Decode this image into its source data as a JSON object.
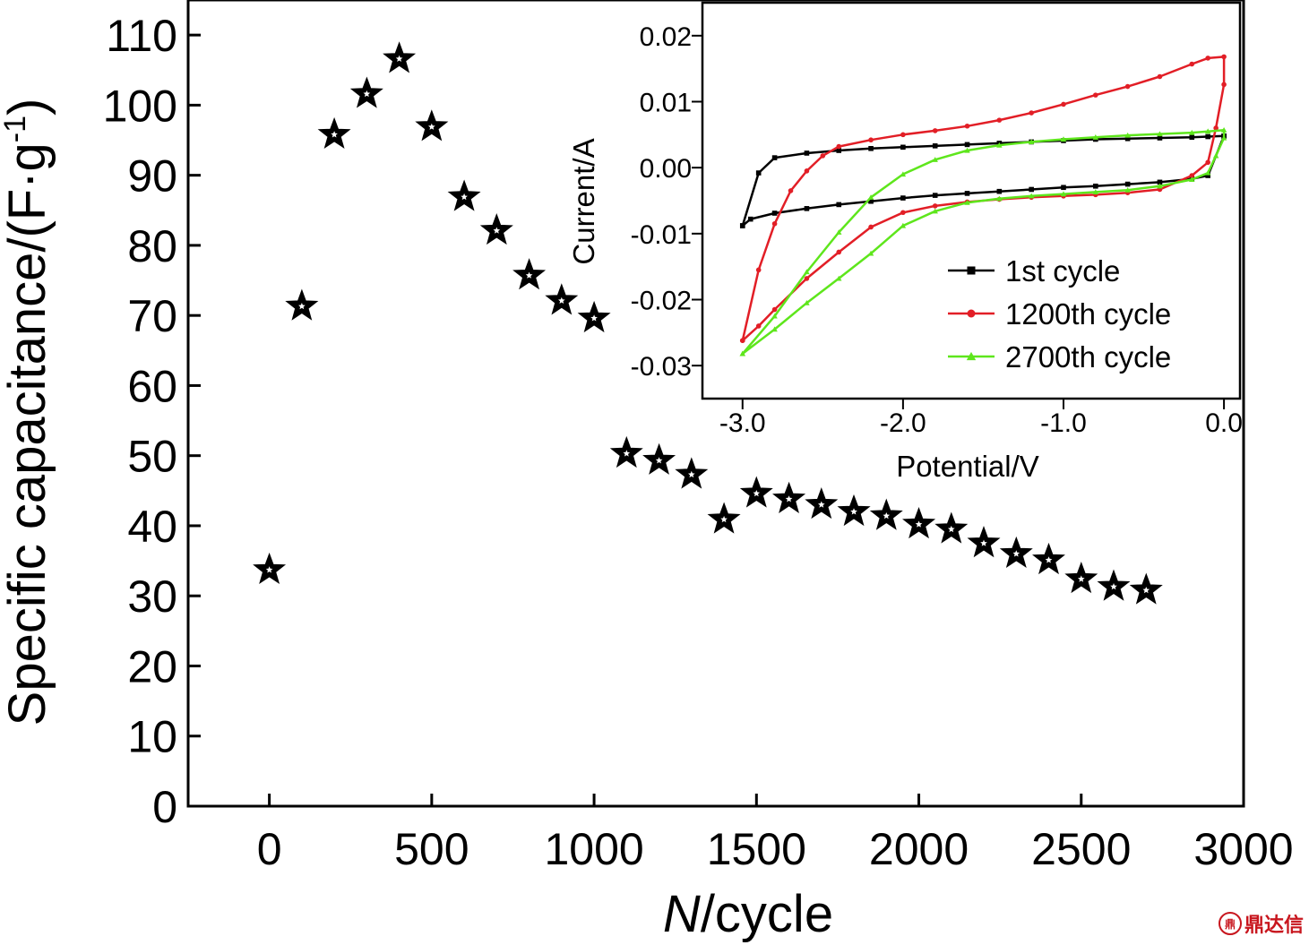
{
  "chart_data": [
    {
      "type": "scatter",
      "marker": "star",
      "xlabel_italic": "N",
      "xlabel_rest": "/cycle",
      "ylabel": "Specific capacitance/(F·g",
      "ylabel_sup": "-1",
      "ylabel_close": ")",
      "xlim": [
        -250,
        3000
      ],
      "ylim": [
        0,
        115
      ],
      "xticks": [
        0,
        500,
        1000,
        1500,
        2000,
        2500,
        3000
      ],
      "yticks": [
        0,
        10,
        20,
        30,
        40,
        50,
        60,
        70,
        80,
        90,
        100,
        110
      ],
      "x": [
        0,
        100,
        200,
        300,
        400,
        500,
        600,
        700,
        800,
        900,
        1000,
        1100,
        1200,
        1300,
        1400,
        1500,
        1600,
        1700,
        1800,
        1900,
        2000,
        2100,
        2200,
        2300,
        2400,
        2500,
        2600,
        2700
      ],
      "y": [
        33.7,
        71.3,
        95.8,
        101.6,
        106.6,
        96.9,
        86.9,
        82.1,
        75.7,
        72.1,
        69.6,
        50.3,
        49.3,
        47.3,
        40.9,
        44.6,
        43.8,
        43.0,
        42.0,
        41.4,
        40.2,
        39.5,
        37.5,
        36.0,
        35.1,
        32.4,
        31.3,
        30.8
      ]
    },
    {
      "type": "line",
      "role": "inset",
      "xlabel": "Potential/V",
      "ylabel": "Current/A",
      "xlim": [
        -3.25,
        0.1
      ],
      "ylim": [
        -0.035,
        0.025
      ],
      "xticks": [
        -3.0,
        -2.0,
        -1.0,
        0.0
      ],
      "xtick_labels": [
        "-3.0",
        "-2.0",
        "-1.0",
        "0.0"
      ],
      "yticks": [
        -0.03,
        -0.02,
        -0.01,
        0.0,
        0.01,
        0.02
      ],
      "ytick_labels": [
        "-0.03",
        "-0.02",
        "-0.01",
        "0.00",
        "0.01",
        "0.02"
      ],
      "legend_position": "lower-right",
      "series": [
        {
          "name": "1st cycle",
          "color": "#000000",
          "marker": "square",
          "x": [
            -3.0,
            -2.9,
            -2.8,
            -2.6,
            -2.4,
            -2.2,
            -2.0,
            -1.8,
            -1.6,
            -1.4,
            -1.2,
            -1.0,
            -0.8,
            -0.6,
            -0.4,
            -0.2,
            -0.1,
            0.0,
            0.0,
            -0.1,
            -0.2,
            -0.4,
            -0.6,
            -0.8,
            -1.0,
            -1.2,
            -1.4,
            -1.6,
            -1.8,
            -2.0,
            -2.2,
            -2.4,
            -2.6,
            -2.8,
            -2.95,
            -3.0
          ],
          "y": [
            -0.0088,
            -0.0008,
            0.0015,
            0.0022,
            0.0026,
            0.0029,
            0.0031,
            0.0033,
            0.0035,
            0.0037,
            0.0039,
            0.0041,
            0.0043,
            0.0044,
            0.0045,
            0.0046,
            0.0047,
            0.0048,
            0.0048,
            -0.0012,
            -0.0017,
            -0.0022,
            -0.0025,
            -0.0028,
            -0.003,
            -0.0033,
            -0.0036,
            -0.0039,
            -0.0042,
            -0.0046,
            -0.0051,
            -0.0056,
            -0.0062,
            -0.0069,
            -0.0078,
            -0.0088
          ]
        },
        {
          "name": "1200th cycle",
          "color": "#e21e26",
          "marker": "circle",
          "x": [
            -3.0,
            -2.9,
            -2.8,
            -2.7,
            -2.6,
            -2.5,
            -2.4,
            -2.2,
            -2.0,
            -1.8,
            -1.6,
            -1.4,
            -1.2,
            -1.0,
            -0.8,
            -0.6,
            -0.4,
            -0.2,
            -0.1,
            0.0,
            0.0,
            -0.05,
            -0.1,
            -0.2,
            -0.4,
            -0.6,
            -0.8,
            -1.0,
            -1.2,
            -1.4,
            -1.6,
            -1.8,
            -2.0,
            -2.2,
            -2.4,
            -2.6,
            -2.8,
            -2.9,
            -3.0
          ],
          "y": [
            -0.0262,
            -0.0155,
            -0.0085,
            -0.0035,
            -0.0005,
            0.0018,
            0.0032,
            0.0042,
            0.005,
            0.0056,
            0.0063,
            0.0072,
            0.0083,
            0.0096,
            0.011,
            0.0123,
            0.0138,
            0.0157,
            0.0166,
            0.0168,
            0.0126,
            0.006,
            0.0008,
            -0.0012,
            -0.0033,
            -0.0038,
            -0.0041,
            -0.0043,
            -0.0045,
            -0.0048,
            -0.0052,
            -0.0058,
            -0.0068,
            -0.009,
            -0.0128,
            -0.0168,
            -0.0215,
            -0.024,
            -0.0262
          ]
        },
        {
          "name": "2700th cycle",
          "color": "#5ee61c",
          "marker": "triangle",
          "x": [
            -3.0,
            -2.8,
            -2.6,
            -2.4,
            -2.2,
            -2.0,
            -1.8,
            -1.6,
            -1.4,
            -1.2,
            -1.0,
            -0.8,
            -0.6,
            -0.4,
            -0.2,
            -0.1,
            0.0,
            0.0,
            -0.05,
            -0.1,
            -0.2,
            -0.4,
            -0.6,
            -0.8,
            -1.0,
            -1.2,
            -1.4,
            -1.6,
            -1.8,
            -2.0,
            -2.2,
            -2.4,
            -2.6,
            -2.8,
            -3.0
          ],
          "y": [
            -0.0282,
            -0.0225,
            -0.0158,
            -0.0098,
            -0.0045,
            -0.001,
            0.0012,
            0.0026,
            0.0034,
            0.0039,
            0.0043,
            0.0046,
            0.0049,
            0.0051,
            0.0053,
            0.0055,
            0.0057,
            0.0045,
            0.0018,
            -0.0008,
            -0.0018,
            -0.0028,
            -0.0034,
            -0.0037,
            -0.004,
            -0.0043,
            -0.0047,
            -0.0053,
            -0.0066,
            -0.0088,
            -0.013,
            -0.0168,
            -0.0205,
            -0.0245,
            -0.0282
          ]
        }
      ]
    }
  ],
  "watermark": {
    "logo": "鼎",
    "text": "鼎达信"
  }
}
